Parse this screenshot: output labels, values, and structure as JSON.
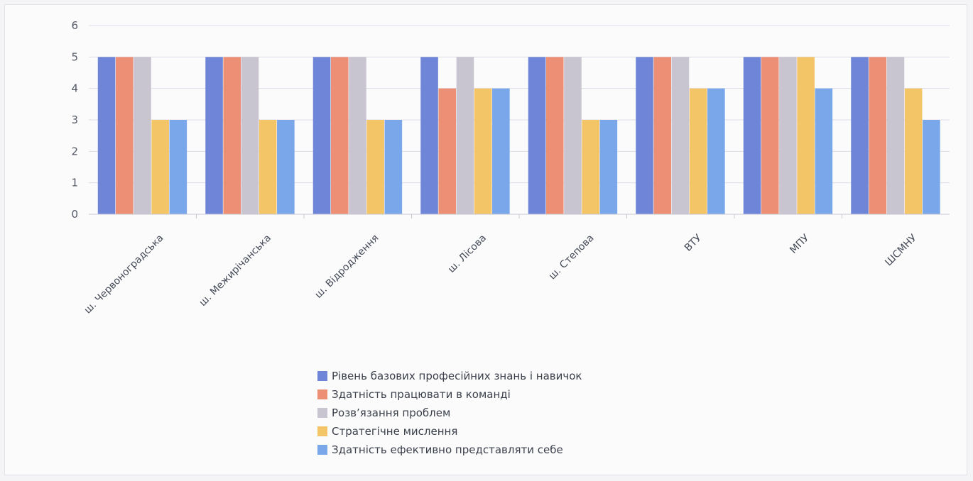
{
  "chart_data": {
    "type": "bar",
    "title": "",
    "xlabel": "",
    "ylabel": "",
    "ylim": [
      0,
      6
    ],
    "yticks": [
      0,
      1,
      2,
      3,
      4,
      5,
      6
    ],
    "grid": true,
    "legend_position": "bottom",
    "categories": [
      "ш. Червоноградська",
      "ш. Межирічанська",
      "ш. Відродження",
      "ш. Лісова",
      "ш. Степова",
      "ВТУ",
      "МПУ",
      "ШСМНУ"
    ],
    "series": [
      {
        "name": "Рівень базових професійних знань і навичок",
        "color": "#6f86d8",
        "values": [
          5,
          5,
          5,
          5,
          5,
          5,
          5,
          5
        ]
      },
      {
        "name": "Здатність працювати в команді",
        "color": "#ec8f74",
        "values": [
          5,
          5,
          5,
          4,
          5,
          5,
          5,
          5
        ]
      },
      {
        "name": "Розв’язання проблем",
        "color": "#c9c5d0",
        "values": [
          5,
          5,
          5,
          5,
          5,
          5,
          5,
          5
        ]
      },
      {
        "name": "Стратегічне мислення",
        "color": "#f4c567",
        "values": [
          3,
          3,
          3,
          4,
          3,
          4,
          5,
          4
        ]
      },
      {
        "name": "Здатність ефективно представляти себе",
        "color": "#7aa7ea",
        "values": [
          3,
          3,
          3,
          4,
          3,
          4,
          4,
          3
        ]
      }
    ]
  }
}
